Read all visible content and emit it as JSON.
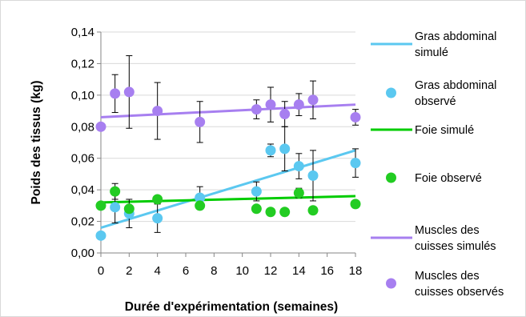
{
  "chart_data": {
    "type": "scatter",
    "title": "",
    "xlabel": "Durée d'expérimentation (semaines)",
    "ylabel": "Poids des tissus (kg)",
    "xlim": [
      0,
      18
    ],
    "ylim": [
      0,
      0.14
    ],
    "xticks": [
      0,
      2,
      4,
      6,
      8,
      10,
      12,
      14,
      16,
      18
    ],
    "xtick_labels": [
      "0",
      "2",
      "4",
      "6",
      "8",
      "10",
      "12",
      "14",
      "16",
      "18"
    ],
    "yticks": [
      0,
      0.02,
      0.04,
      0.06,
      0.08,
      0.1,
      0.12,
      0.14
    ],
    "ytick_labels": [
      "0,00",
      "0,02",
      "0,04",
      "0,06",
      "0,08",
      "0,10",
      "0,12",
      "0,14"
    ],
    "grid": "horizontal",
    "legend_position": "right",
    "series": [
      {
        "name_lines": [
          "Gras abdominal",
          "simulé"
        ],
        "kind": "line",
        "color": "#5bc8f0",
        "x": [
          0,
          18
        ],
        "y": [
          0.016,
          0.065
        ]
      },
      {
        "name_lines": [
          "Gras abdominal",
          "observé"
        ],
        "kind": "points",
        "color": "#5bc8f0",
        "x": [
          0,
          1,
          2,
          4,
          7,
          11,
          12,
          13,
          14,
          15,
          18
        ],
        "y": [
          0.011,
          0.029,
          0.025,
          0.022,
          0.035,
          0.039,
          0.065,
          0.066,
          0.055,
          0.049,
          0.057
        ],
        "err": [
          0,
          0.01,
          0.009,
          0.009,
          0.007,
          0.006,
          0.004,
          0.014,
          0.008,
          0.016,
          0.009
        ]
      },
      {
        "name_lines": [
          "Foie simulé"
        ],
        "kind": "line",
        "color": "#00cc00",
        "x": [
          0,
          18
        ],
        "y": [
          0.032,
          0.036
        ]
      },
      {
        "name_lines": [
          "Foie observé"
        ],
        "kind": "points",
        "color": "#22cc22",
        "x": [
          0,
          1,
          2,
          4,
          7,
          11,
          12,
          13,
          14,
          15,
          18
        ],
        "y": [
          0.03,
          0.039,
          0.028,
          0.034,
          0.03,
          0.028,
          0.026,
          0.026,
          0.038,
          0.027,
          0.031
        ],
        "err": [
          0,
          0.005,
          0,
          0,
          0,
          0,
          0,
          0,
          0.003,
          0,
          0
        ]
      },
      {
        "name_lines": [
          "Muscles des",
          "cuisses simulés"
        ],
        "kind": "line",
        "color": "#a77ff0",
        "x": [
          0,
          18
        ],
        "y": [
          0.086,
          0.094
        ]
      },
      {
        "name_lines": [
          "Muscles des",
          "cuisses observés"
        ],
        "kind": "points",
        "color": "#a77ff0",
        "x": [
          0,
          1,
          2,
          4,
          7,
          11,
          12,
          13,
          14,
          15,
          18
        ],
        "y": [
          0.08,
          0.101,
          0.102,
          0.09,
          0.083,
          0.091,
          0.094,
          0.088,
          0.094,
          0.097,
          0.086
        ],
        "err": [
          0,
          0.012,
          0.023,
          0.018,
          0.013,
          0.006,
          0.011,
          0.008,
          0.007,
          0.012,
          0.005
        ]
      }
    ]
  }
}
